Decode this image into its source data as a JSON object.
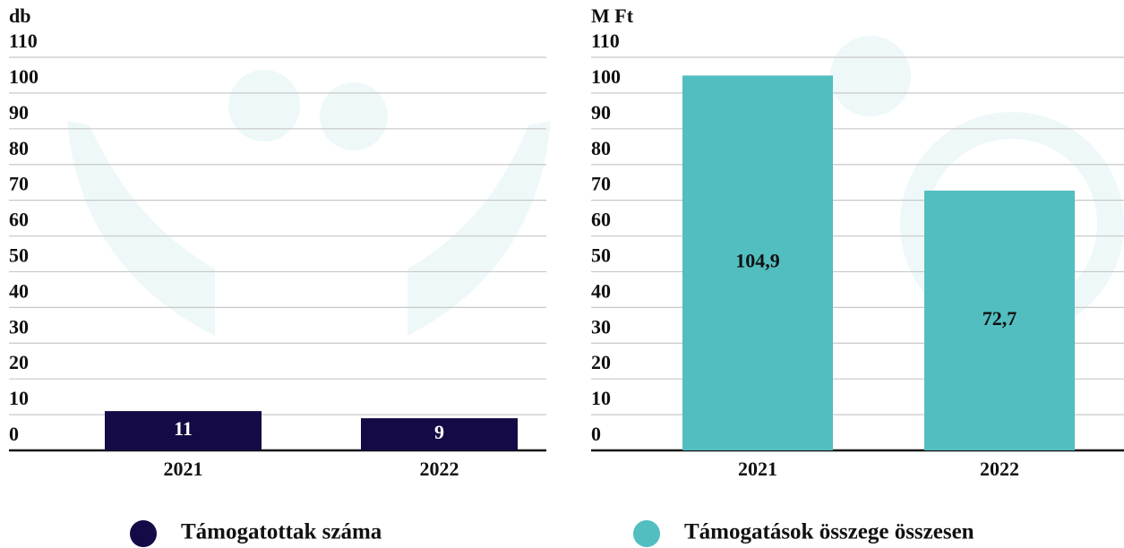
{
  "chart_data": [
    {
      "type": "bar",
      "y_label": "db",
      "categories": [
        "2021",
        "2022"
      ],
      "series": [
        {
          "name": "Támogatottak száma",
          "color": "#140a45",
          "values": [
            11,
            9
          ]
        }
      ],
      "ylim": [
        0,
        110
      ],
      "yticks": [
        0,
        10,
        20,
        30,
        40,
        50,
        60,
        70,
        80,
        90,
        100,
        110
      ],
      "grid": true
    },
    {
      "type": "bar",
      "y_label": "M Ft",
      "categories": [
        "2021",
        "2022"
      ],
      "series": [
        {
          "name": "Támogatások összege összesen",
          "color": "#52bec0",
          "values": [
            104.9,
            72.7
          ],
          "value_labels": [
            "104,9",
            "72,7"
          ]
        }
      ],
      "ylim": [
        0,
        110
      ],
      "yticks": [
        0,
        10,
        20,
        30,
        40,
        50,
        60,
        70,
        80,
        90,
        100,
        110
      ],
      "grid": true
    }
  ]
}
